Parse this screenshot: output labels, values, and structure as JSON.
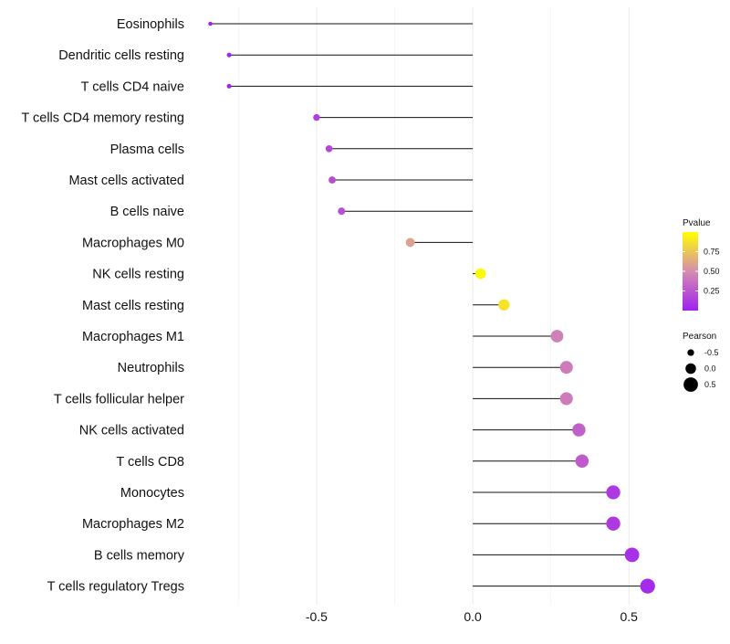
{
  "chart_data": {
    "type": "lollipop",
    "orientation": "horizontal",
    "categories": [
      "Eosinophils",
      "Dendritic cells resting",
      "T cells CD4 naive",
      "T cells CD4 memory resting",
      "Plasma cells",
      "Mast cells activated",
      "B cells naive",
      "Macrophages M0",
      "NK cells resting",
      "Mast cells resting",
      "Macrophages M1",
      "Neutrophils",
      "T cells follicular helper",
      "NK cells activated",
      "T cells CD8",
      "Monocytes",
      "Macrophages M2",
      "B cells memory",
      "T cells regulatory  Tregs"
    ],
    "pearson": [
      -0.84,
      -0.78,
      -0.78,
      -0.5,
      -0.46,
      -0.45,
      -0.42,
      -0.2,
      0.025,
      0.1,
      0.27,
      0.3,
      0.3,
      0.34,
      0.35,
      0.45,
      0.45,
      0.51,
      0.56
    ],
    "pvalue": [
      0.01,
      0.02,
      0.02,
      0.15,
      0.18,
      0.2,
      0.22,
      0.6,
      0.98,
      0.88,
      0.45,
      0.42,
      0.42,
      0.3,
      0.28,
      0.12,
      0.12,
      0.08,
      0.05
    ],
    "xlabel": "",
    "ylabel": "",
    "x_ticks": [
      -0.5,
      0.0,
      0.5
    ],
    "x_tick_labels": [
      "-0.5",
      "0.0",
      "0.5"
    ],
    "xlim": [
      -0.9,
      0.59
    ],
    "grid": true,
    "legend_color": {
      "title": "Pvalue",
      "ticks": [
        0.25,
        0.5,
        0.75
      ],
      "tick_labels": [
        "0.25",
        "0.50",
        "0.75"
      ],
      "range": [
        0.0,
        1.0
      ],
      "low_color": "#a020f0",
      "mid_color": "#d58cb0",
      "high_color": "#ffff00"
    },
    "legend_size": {
      "title": "Pearson",
      "values": [
        -0.5,
        0.0,
        0.5
      ],
      "labels": [
        "-0.5",
        "0.0",
        "0.5"
      ]
    },
    "legend_position": "right"
  }
}
